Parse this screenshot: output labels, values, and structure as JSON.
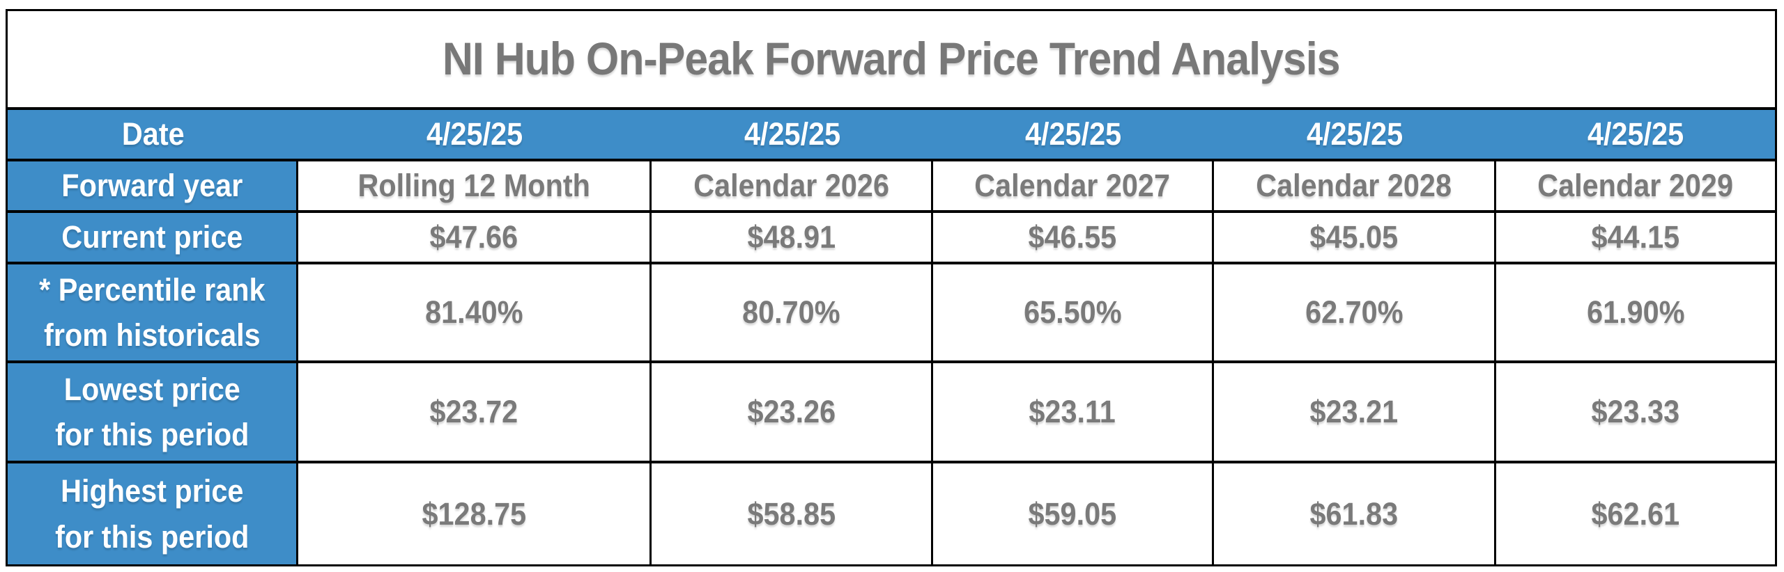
{
  "title": "NI Hub On-Peak Forward Price Trend Analysis",
  "header": {
    "label": "Date",
    "dates": [
      "4/25/25",
      "4/25/25",
      "4/25/25",
      "4/25/25",
      "4/25/25"
    ]
  },
  "rows": [
    {
      "label_line1": "Forward year",
      "values": [
        "Rolling 12 Month",
        "Calendar 2026",
        "Calendar 2027",
        "Calendar 2028",
        "Calendar 2029"
      ]
    },
    {
      "label_line1": "Current price",
      "values": [
        "$47.66",
        "$48.91",
        "$46.55",
        "$45.05",
        "$44.15"
      ]
    },
    {
      "label_line1": "* Percentile rank",
      "label_line2": "from historicals",
      "values": [
        "81.40%",
        "80.70%",
        "65.50%",
        "62.70%",
        "61.90%"
      ]
    },
    {
      "label_line1": "Lowest price",
      "label_line2": "for this period",
      "values": [
        "$23.72",
        "$23.26",
        "$23.11",
        "$23.21",
        "$23.33"
      ]
    },
    {
      "label_line1": "Highest price",
      "label_line2": "for this period",
      "values": [
        "$128.75",
        "$58.85",
        "$59.05",
        "$61.83",
        "$62.61"
      ]
    }
  ],
  "colors": {
    "header_blue": "#3E8DC8",
    "value_gray": "#7A7A7A",
    "title_gray": "#787878",
    "border_black": "#000000",
    "header_text_white": "#FFFFFF"
  },
  "chart_data": {
    "type": "table",
    "title": "NI Hub On-Peak Forward Price Trend Analysis",
    "quote_date": "4/25/25",
    "columns": [
      "Rolling 12 Month",
      "Calendar 2026",
      "Calendar 2027",
      "Calendar 2028",
      "Calendar 2029"
    ],
    "rows": [
      {
        "metric": "Current price ($)",
        "values": [
          47.66,
          48.91,
          46.55,
          45.05,
          44.15
        ]
      },
      {
        "metric": "* Percentile rank from historicals (%)",
        "values": [
          81.4,
          80.7,
          65.5,
          62.7,
          61.9
        ]
      },
      {
        "metric": "Lowest price for this period ($)",
        "values": [
          23.72,
          23.26,
          23.11,
          23.21,
          23.33
        ]
      },
      {
        "metric": "Highest price for this period ($)",
        "values": [
          128.75,
          58.85,
          59.05,
          61.83,
          62.61
        ]
      }
    ],
    "layout": {
      "header_fill": "#3E8DC8",
      "grid": true,
      "legend": "none"
    }
  }
}
